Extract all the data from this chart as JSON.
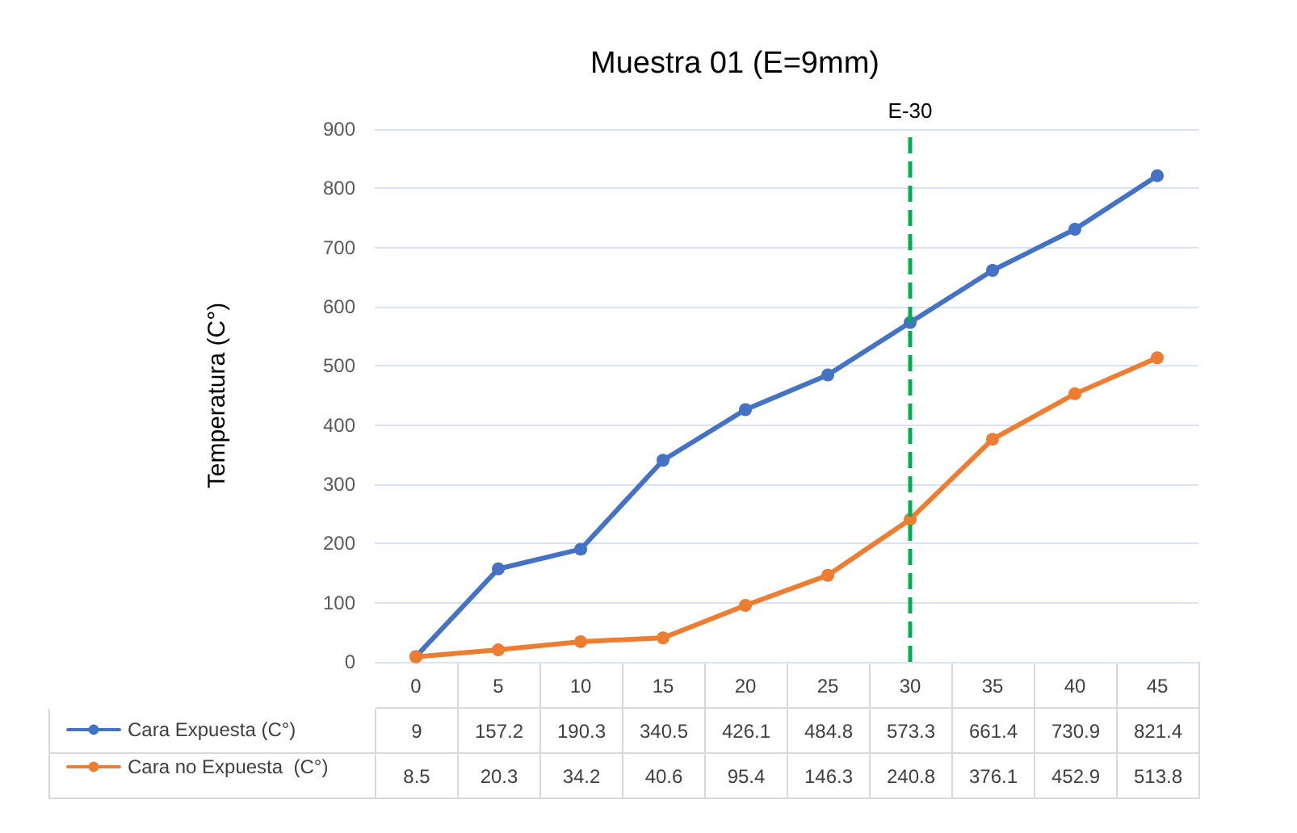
{
  "chart_data": {
    "type": "line",
    "title": "Muestra 01 (E=9mm)",
    "ylabel": "Temperatura (C°)",
    "categories": [
      "0",
      "5",
      "10",
      "15",
      "20",
      "25",
      "30",
      "35",
      "40",
      "45"
    ],
    "series": [
      {
        "name": "Cara Expuesta (C°)",
        "color": "#4472c4",
        "values": [
          9,
          157.2,
          190.3,
          340.5,
          426.1,
          484.8,
          573.3,
          661.4,
          730.9,
          821.4
        ]
      },
      {
        "name": "Cara no Expuesta  (C°)",
        "color": "#ed7d31",
        "values": [
          8.5,
          20.3,
          34.2,
          40.6,
          95.4,
          146.3,
          240.8,
          376.1,
          452.9,
          513.8
        ]
      }
    ],
    "ylim": [
      0,
      900
    ],
    "yticks": [
      0,
      100,
      200,
      300,
      400,
      500,
      600,
      700,
      800,
      900
    ],
    "ref_lines": [
      {
        "axis": "x",
        "value": "30",
        "label": "E-30",
        "color": "#00b050",
        "line_style": "dashed"
      }
    ],
    "grid": "y",
    "legend": "bottom",
    "marker": "circle",
    "line_style": "solid",
    "data_labels": true
  }
}
